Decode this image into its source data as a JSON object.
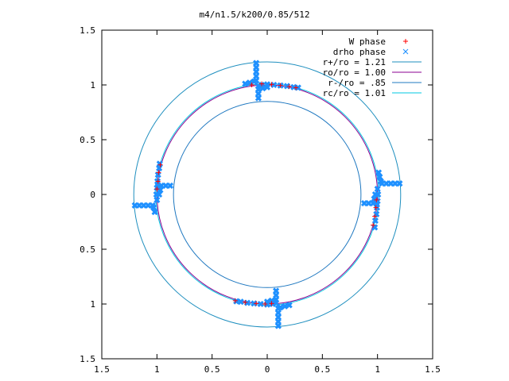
{
  "chart_data": {
    "type": "scatter",
    "title": "m4/n1.5/k200/0.85/512",
    "xlabel": "",
    "ylabel": "",
    "xlim": [
      -1.5,
      1.5
    ],
    "ylim": [
      -1.5,
      1.5
    ],
    "x_ticks": [
      -1.5,
      -1,
      -0.5,
      0,
      0.5,
      1,
      1.5
    ],
    "y_ticks": [
      -1.5,
      -1,
      -0.5,
      0,
      0.5,
      1,
      1.5
    ],
    "x_tick_labels": [
      "1.5",
      "1",
      "0.5",
      "0",
      "0.5",
      "1",
      "1.5"
    ],
    "y_tick_labels": [
      "1.5",
      "1",
      "0.5",
      "0",
      "0.5",
      "1",
      "1.5"
    ],
    "grid": false,
    "legend_position": "top-right",
    "series": [
      {
        "name": "W phase",
        "kind": "points",
        "marker": "plus",
        "color": "#ff0000",
        "points": [
          [
            -0.14,
            1.0
          ],
          [
            -0.05,
            1.01
          ],
          [
            0.04,
            1.005
          ],
          [
            0.12,
            0.995
          ],
          [
            0.2,
            0.985
          ],
          [
            0.26,
            0.975
          ],
          [
            -0.29,
            -0.97
          ],
          [
            -0.2,
            -0.985
          ],
          [
            -0.1,
            -0.995
          ],
          [
            -0.02,
            -1.0
          ],
          [
            0.04,
            -0.995
          ],
          [
            -1.0,
            0.05
          ],
          [
            -0.99,
            0.12
          ],
          [
            -0.985,
            0.2
          ],
          [
            -0.97,
            0.27
          ],
          [
            0.99,
            -0.05
          ],
          [
            0.985,
            -0.12
          ],
          [
            0.975,
            -0.2
          ],
          [
            0.96,
            -0.28
          ]
        ]
      },
      {
        "name": "drho phase",
        "kind": "points",
        "marker": "cross",
        "color": "#1e90ff",
        "points": [
          [
            -0.1,
            1.2
          ],
          [
            -0.1,
            1.16
          ],
          [
            -0.1,
            1.12
          ],
          [
            -0.1,
            1.08
          ],
          [
            -0.1,
            1.04
          ],
          [
            -0.12,
            1.03
          ],
          [
            -0.16,
            1.02
          ],
          [
            -0.2,
            1.01
          ],
          [
            -0.05,
            1.0
          ],
          [
            0.0,
            1.005
          ],
          [
            0.06,
            1.0
          ],
          [
            0.12,
            0.995
          ],
          [
            0.18,
            0.99
          ],
          [
            0.24,
            0.98
          ],
          [
            0.28,
            0.975
          ],
          [
            -0.08,
            0.99
          ],
          [
            -0.08,
            0.96
          ],
          [
            -0.08,
            0.92
          ],
          [
            -0.08,
            0.88
          ],
          [
            -0.04,
            0.97
          ],
          [
            0.0,
            0.98
          ],
          [
            0.1,
            -1.2
          ],
          [
            0.1,
            -1.16
          ],
          [
            0.1,
            -1.12
          ],
          [
            0.1,
            -1.08
          ],
          [
            0.1,
            -1.04
          ],
          [
            0.12,
            -1.03
          ],
          [
            0.16,
            -1.02
          ],
          [
            0.2,
            -1.01
          ],
          [
            0.05,
            -1.0
          ],
          [
            0.0,
            -1.005
          ],
          [
            -0.06,
            -1.0
          ],
          [
            -0.12,
            -0.995
          ],
          [
            -0.18,
            -0.99
          ],
          [
            -0.24,
            -0.98
          ],
          [
            -0.28,
            -0.975
          ],
          [
            0.08,
            -0.99
          ],
          [
            0.08,
            -0.96
          ],
          [
            0.08,
            -0.92
          ],
          [
            0.08,
            -0.88
          ],
          [
            0.04,
            -0.97
          ],
          [
            0.0,
            -0.98
          ],
          [
            -1.2,
            -0.1
          ],
          [
            -1.16,
            -0.1
          ],
          [
            -1.12,
            -0.1
          ],
          [
            -1.08,
            -0.1
          ],
          [
            -1.04,
            -0.1
          ],
          [
            -1.03,
            -0.12
          ],
          [
            -1.02,
            -0.16
          ],
          [
            -1.0,
            -0.05
          ],
          [
            -1.005,
            0.0
          ],
          [
            -1.0,
            0.06
          ],
          [
            -0.995,
            0.12
          ],
          [
            -0.99,
            0.18
          ],
          [
            -0.98,
            0.24
          ],
          [
            -0.975,
            0.28
          ],
          [
            -0.99,
            0.08
          ],
          [
            -0.96,
            0.08
          ],
          [
            -0.92,
            0.08
          ],
          [
            -0.88,
            0.08
          ],
          [
            -0.97,
            0.04
          ],
          [
            -0.98,
            0.0
          ],
          [
            1.2,
            0.1
          ],
          [
            1.16,
            0.1
          ],
          [
            1.12,
            0.1
          ],
          [
            1.08,
            0.1
          ],
          [
            1.04,
            0.1
          ],
          [
            1.03,
            0.12
          ],
          [
            1.02,
            0.16
          ],
          [
            1.01,
            0.2
          ],
          [
            1.0,
            0.05
          ],
          [
            1.005,
            0.0
          ],
          [
            1.0,
            -0.06
          ],
          [
            0.995,
            -0.12
          ],
          [
            0.99,
            -0.18
          ],
          [
            0.98,
            -0.24
          ],
          [
            0.975,
            -0.3
          ],
          [
            0.99,
            -0.08
          ],
          [
            0.96,
            -0.08
          ],
          [
            0.92,
            -0.08
          ],
          [
            0.88,
            -0.08
          ],
          [
            0.97,
            -0.04
          ],
          [
            0.98,
            0.0
          ]
        ]
      },
      {
        "name": "r+/ro = 1.21",
        "kind": "circle",
        "radius": 1.21,
        "color": "#1f8fbf"
      },
      {
        "name": "ro/ro = 1.00",
        "kind": "circle",
        "radius": 1.0,
        "color": "#8b0090"
      },
      {
        "name": "r-/ro = .85",
        "kind": "circle",
        "radius": 0.85,
        "color": "#1f78c0"
      },
      {
        "name": "rc/ro = 1.01",
        "kind": "circle",
        "radius": 1.01,
        "color": "#00c8e0"
      }
    ]
  }
}
